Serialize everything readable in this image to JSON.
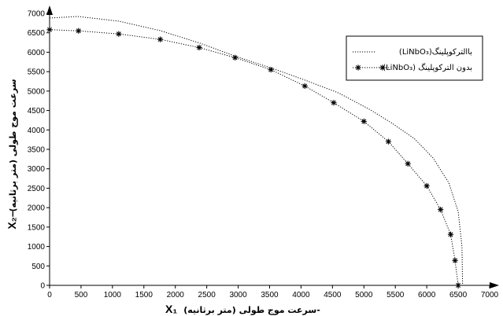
{
  "chart_data": {
    "type": "line",
    "xlabel_text": "سرعت موج طولی (متر برثانیه)-",
    "xlabel_symbol": "X₁",
    "ylabel_text": "سرعت موج طولی (متر برثانیه)",
    "ylabel_symbol": "X₂–",
    "xlim": [
      0,
      7000
    ],
    "ylim": [
      0,
      7000
    ],
    "x_ticks": [
      0,
      500,
      1000,
      1500,
      2000,
      2500,
      3000,
      3500,
      4000,
      4500,
      5000,
      5500,
      6000,
      6500,
      7000
    ],
    "y_ticks": [
      0,
      500,
      1000,
      1500,
      2000,
      2500,
      3000,
      3500,
      4000,
      4500,
      5000,
      5500,
      6000,
      6500,
      7000
    ],
    "legend_position": "top-right",
    "series": [
      {
        "name": "(LiNbO₃)باالترکوپلینگ",
        "style": "dotted",
        "color": "#000000",
        "points": [
          [
            0,
            6880
          ],
          [
            450,
            6920
          ],
          [
            1100,
            6800
          ],
          [
            1750,
            6560
          ],
          [
            2400,
            6230
          ],
          [
            2950,
            5900
          ],
          [
            3550,
            5580
          ],
          [
            4100,
            5260
          ],
          [
            4600,
            4950
          ],
          [
            5100,
            4520
          ],
          [
            5450,
            4170
          ],
          [
            5800,
            3780
          ],
          [
            6100,
            3280
          ],
          [
            6350,
            2640
          ],
          [
            6500,
            1900
          ],
          [
            6560,
            1000
          ],
          [
            6570,
            0
          ]
        ]
      },
      {
        "name": "(LiNbO₃) بدون الترکوپلینگ",
        "style": "dotted-star",
        "color": "#000000",
        "points": [
          [
            0,
            6580
          ],
          [
            460,
            6550
          ],
          [
            1100,
            6470
          ],
          [
            1760,
            6330
          ],
          [
            2380,
            6120
          ],
          [
            2950,
            5860
          ],
          [
            3520,
            5550
          ],
          [
            4060,
            5130
          ],
          [
            4520,
            4700
          ],
          [
            5000,
            4220
          ],
          [
            5390,
            3700
          ],
          [
            5700,
            3130
          ],
          [
            6000,
            2560
          ],
          [
            6220,
            1950
          ],
          [
            6380,
            1310
          ],
          [
            6450,
            640
          ],
          [
            6500,
            0
          ]
        ]
      }
    ]
  }
}
